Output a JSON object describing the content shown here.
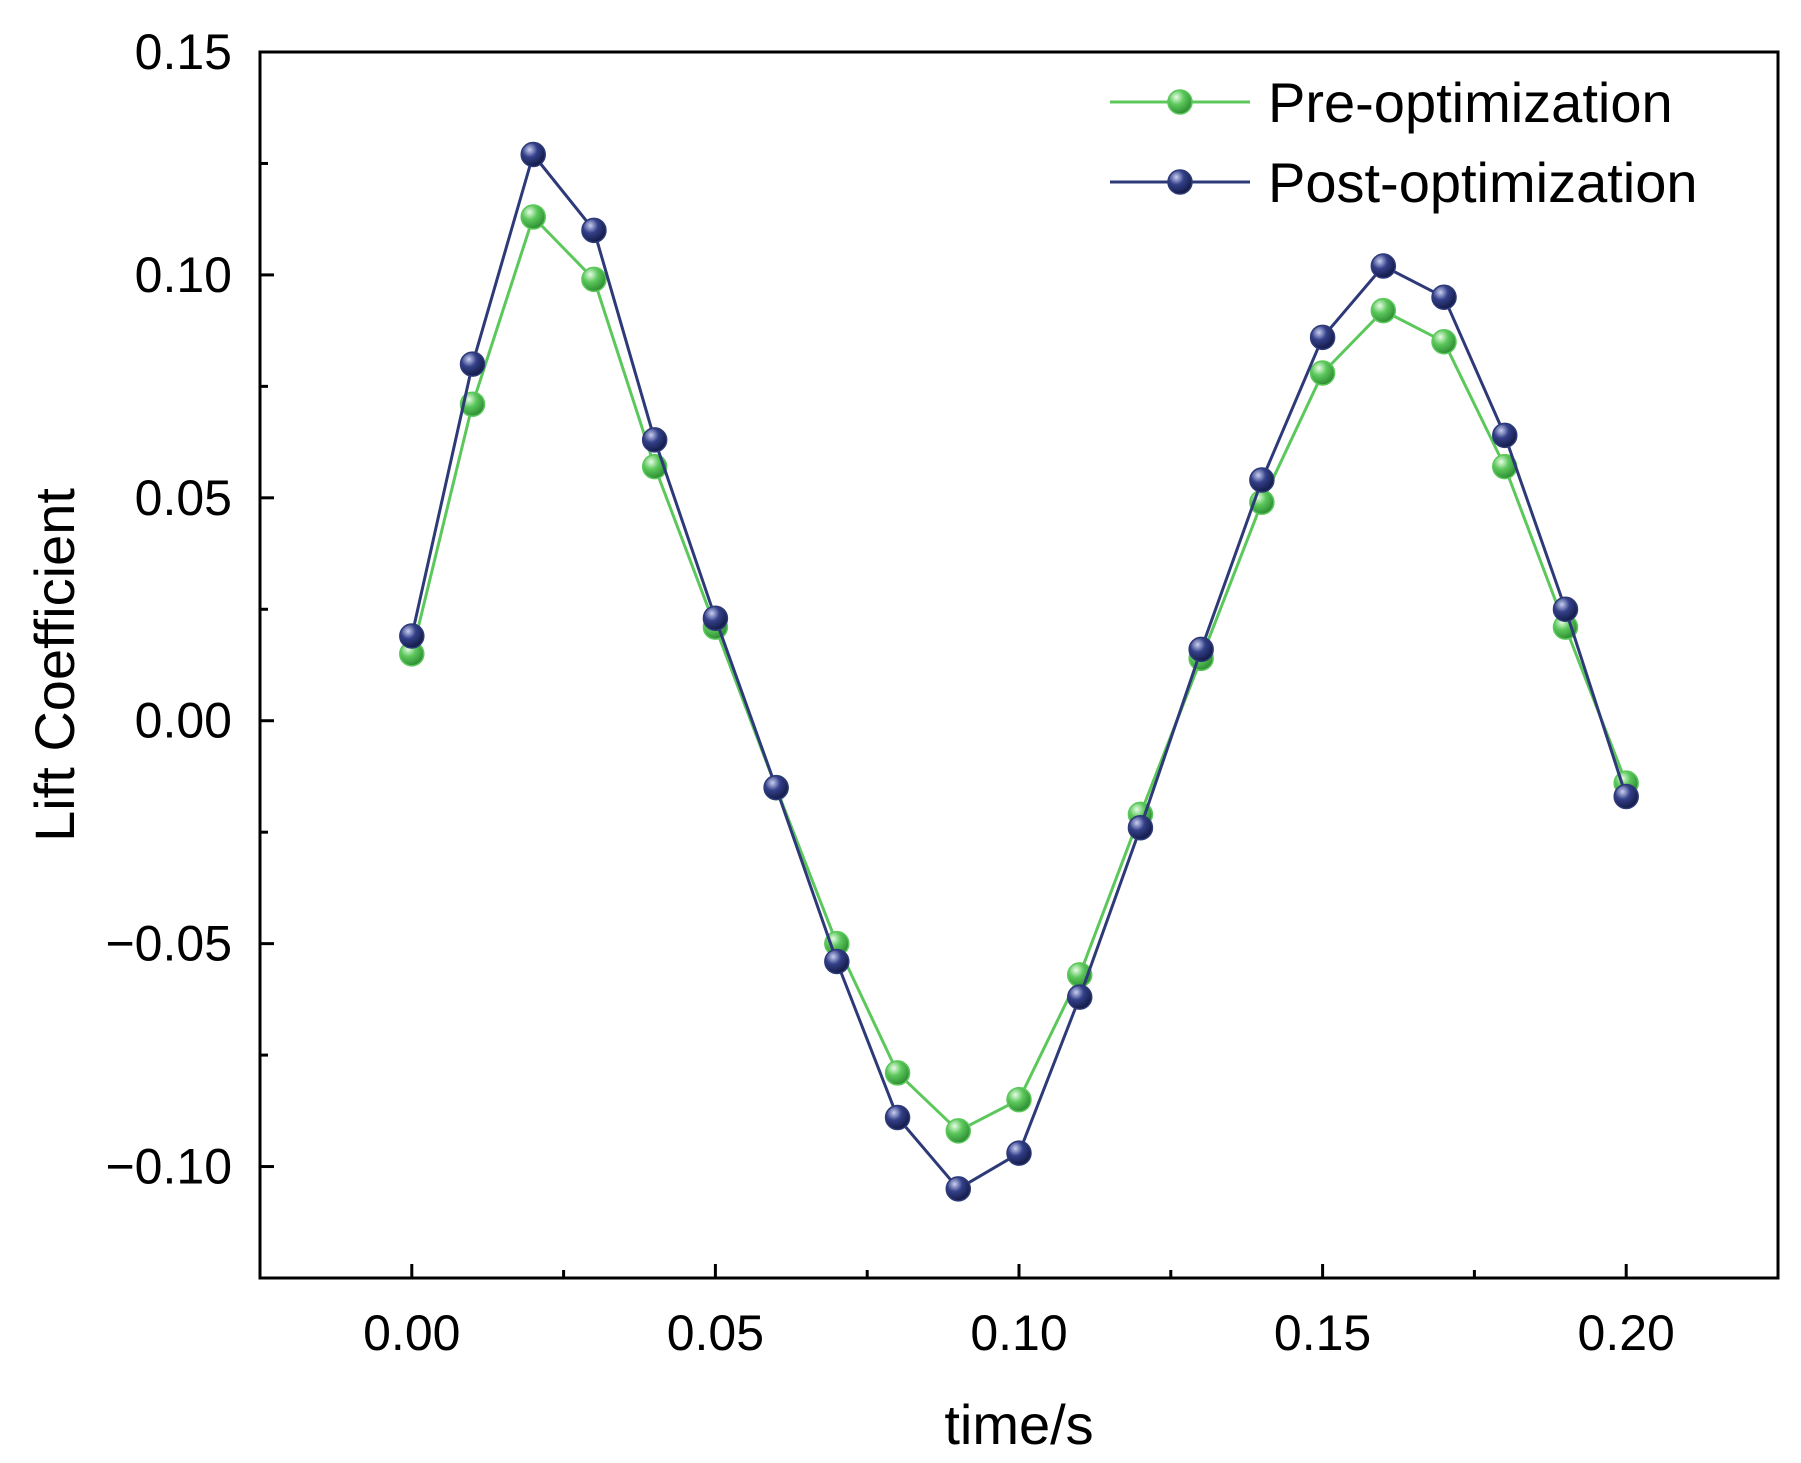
{
  "chart_data": {
    "type": "line",
    "title": "",
    "xlabel": "time/s",
    "ylabel": "Lift Coefficient",
    "xlim": [
      -0.025,
      0.225
    ],
    "ylim": [
      -0.125,
      0.15
    ],
    "xticks": [
      0.0,
      0.05,
      0.1,
      0.15,
      0.2
    ],
    "xtick_labels": [
      "0.00",
      "0.05",
      "0.10",
      "0.15",
      "0.20"
    ],
    "xminor_ticks": [
      0.025,
      0.075,
      0.125,
      0.175
    ],
    "yticks": [
      -0.1,
      -0.05,
      0.0,
      0.05,
      0.1,
      0.15
    ],
    "ytick_labels": [
      "−0.10",
      "−0.05",
      "0.00",
      "0.05",
      "0.10",
      "0.15"
    ],
    "yminor_ticks": [
      -0.125,
      -0.075,
      -0.025,
      0.025,
      0.075,
      0.125
    ],
    "grid": false,
    "legend_position": "top-right",
    "x": [
      0.0,
      0.01,
      0.02,
      0.03,
      0.04,
      0.05,
      0.06,
      0.07,
      0.08,
      0.09,
      0.1,
      0.11,
      0.12,
      0.13,
      0.14,
      0.15,
      0.16,
      0.17,
      0.18,
      0.19,
      0.2
    ],
    "series": [
      {
        "name": "Pre-optimization",
        "color": "#5cc85c",
        "values": [
          0.015,
          0.071,
          0.113,
          0.099,
          0.057,
          0.021,
          -0.015,
          -0.05,
          -0.079,
          -0.092,
          -0.085,
          -0.057,
          -0.021,
          0.014,
          0.049,
          0.078,
          0.092,
          0.085,
          0.057,
          0.021,
          -0.014
        ]
      },
      {
        "name": "Post-optimization",
        "color": "#2e3a78",
        "values": [
          0.019,
          0.08,
          0.127,
          0.11,
          0.063,
          0.023,
          -0.015,
          -0.054,
          -0.089,
          -0.105,
          -0.097,
          -0.062,
          -0.024,
          0.016,
          0.054,
          0.086,
          0.102,
          0.095,
          0.064,
          0.025,
          -0.017
        ]
      }
    ]
  }
}
